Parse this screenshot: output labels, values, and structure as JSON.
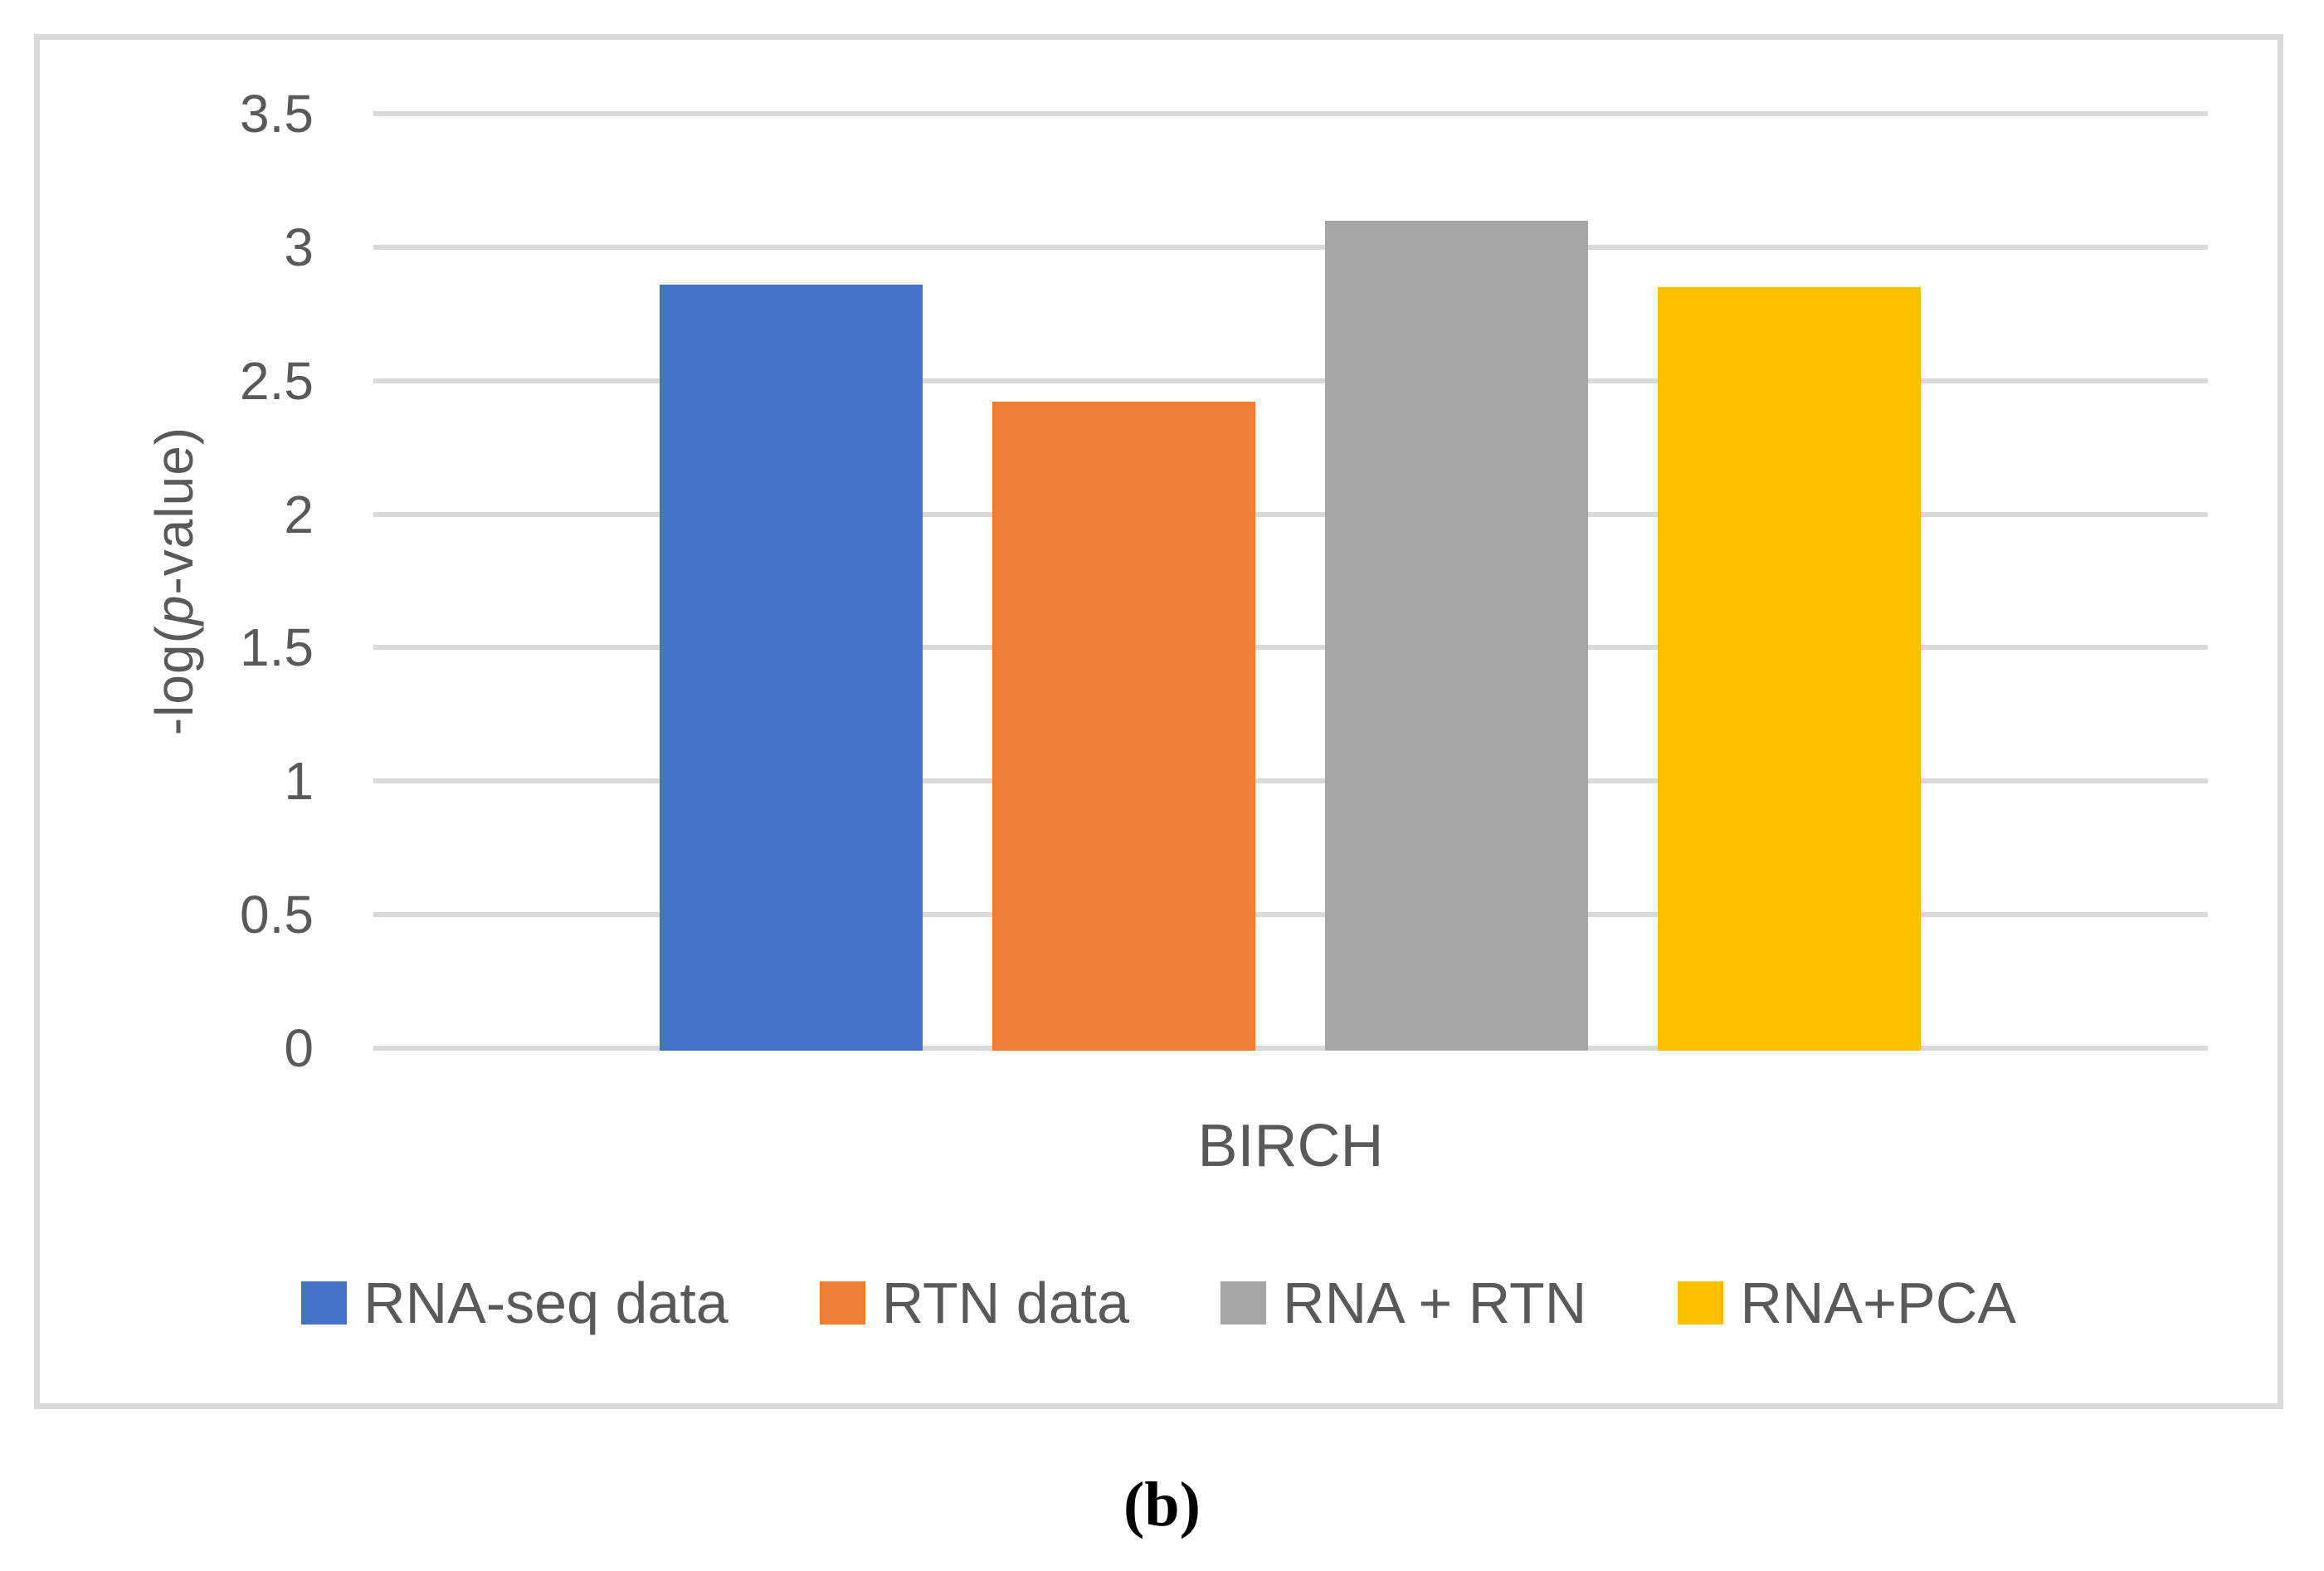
{
  "figure": {
    "caption": "(b)"
  },
  "chart_data": {
    "type": "bar",
    "title": "",
    "categories": [
      "BIRCH"
    ],
    "series": [
      {
        "name": "RNA-seq data",
        "color": "#4472C4",
        "values": [
          2.86
        ]
      },
      {
        "name": "RTN data",
        "color": "#ED7D31",
        "values": [
          2.42
        ]
      },
      {
        "name": "RNA + RTN",
        "color": "#A5A5A5",
        "values": [
          3.1
        ]
      },
      {
        "name": "RNA+PCA",
        "color": "#FFC000",
        "values": [
          2.85
        ]
      }
    ],
    "xlabel": "BIRCH",
    "ylabel": "-log(p-value)",
    "ylabel_parts": {
      "prefix": "-log(",
      "italic": "p",
      "suffix": "-value)"
    },
    "ylim": [
      0,
      3.5
    ],
    "ytick_step": 0.5,
    "yticks": [
      0,
      0.5,
      1,
      1.5,
      2,
      2.5,
      3,
      3.5
    ],
    "grid": "horizontal",
    "legend_position": "bottom",
    "colors": {
      "gridline": "#D9D9D9",
      "frame_border": "#D9D9D9",
      "axis_text": "#595959"
    }
  }
}
